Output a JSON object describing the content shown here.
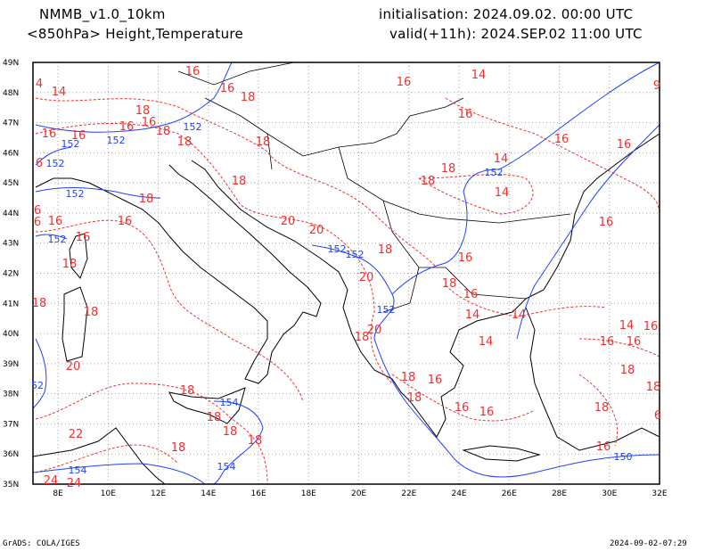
{
  "header": {
    "model": "NMMB_v1.0_10km",
    "field": "<850hPa> Height,Temperature",
    "init": "initialisation: 2024.09.02.  00:00 UTC",
    "valid": "valid(+11h): 2024.SEP.02 11:00 UTC"
  },
  "footer": {
    "credit": "GrADS: COLA/IGES",
    "timestamp": "2024-09-02-07:29"
  },
  "axes": {
    "lat_labels": [
      "35N",
      "36N",
      "37N",
      "38N",
      "39N",
      "40N",
      "41N",
      "42N",
      "43N",
      "44N",
      "45N",
      "46N",
      "47N",
      "48N",
      "49N"
    ],
    "lon_labels": [
      "8E",
      "10E",
      "12E",
      "14E",
      "16E",
      "18E",
      "20E",
      "22E",
      "24E",
      "26E",
      "28E",
      "30E",
      "32E"
    ]
  },
  "colors": {
    "temperature": "#f03030",
    "height": "#2040ff",
    "coast": "#000000",
    "grid": "#a0a0a0"
  },
  "temperature_labels": [
    "16",
    "4",
    "14",
    "16",
    "18",
    "16",
    "14",
    "16",
    "18",
    "16",
    "16",
    "18",
    "16",
    "16",
    "18",
    "18",
    "16",
    "16",
    "14",
    "18",
    "18",
    "18",
    "14",
    "6",
    "18",
    "6",
    "16",
    "6",
    "16",
    "20",
    "16",
    "20",
    "16",
    "18",
    "16",
    "18",
    "20",
    "18",
    "16",
    "18",
    "18",
    "14",
    "14",
    "20",
    "18",
    "14",
    "14",
    "16",
    "16",
    "16",
    "20",
    "18",
    "18",
    "16",
    "18",
    "18",
    "18",
    "16",
    "16",
    "18",
    "18",
    "18",
    "18",
    "22",
    "18",
    "16",
    "6",
    "24",
    "24",
    "9"
  ],
  "height_labels": [
    "152",
    "152",
    "152",
    "152",
    "152",
    "152",
    "152",
    "152",
    "152",
    "152",
    "52",
    "154",
    "154",
    "154",
    "150"
  ]
}
